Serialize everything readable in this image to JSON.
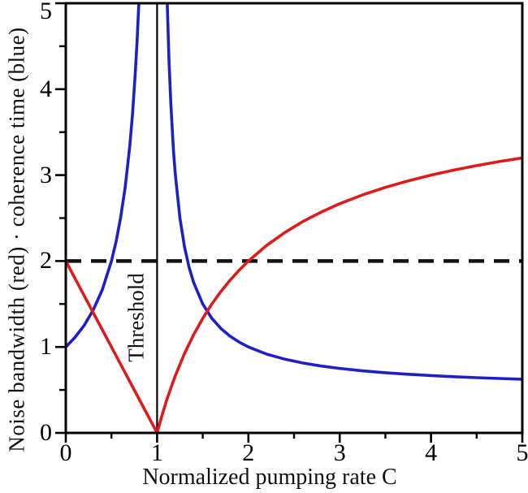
{
  "figure": {
    "background": "#ffffff",
    "axis_color": "#000000",
    "threshold_label": "Threshold"
  },
  "chart_data": {
    "type": "line",
    "title": "",
    "xlabel": "Normalized pumping rate C",
    "ylabel": "Noise bandwidth (red) · coherence time (blue)",
    "xlim": [
      0,
      5
    ],
    "ylim": [
      0,
      5
    ],
    "x_ticks": [
      0,
      1,
      2,
      3,
      4,
      5
    ],
    "y_ticks": [
      0,
      1,
      2,
      3,
      4,
      5
    ],
    "minor_tick_step": 0.5,
    "grid": false,
    "legend_position": "none (series identified by colors named in y-axis label)",
    "annotations": [
      {
        "type": "vline",
        "x": 1,
        "label": "Threshold",
        "style": "solid",
        "color": "#000000"
      },
      {
        "type": "hline",
        "y": 2,
        "label": "",
        "style": "dashed",
        "color": "#111111"
      }
    ],
    "series": [
      {
        "name": "coherence time",
        "color": "#1f1fc8",
        "segments": [
          [
            [
              0,
              1
            ],
            [
              0.1,
              1.111
            ],
            [
              0.2,
              1.25
            ],
            [
              0.3,
              1.429
            ],
            [
              0.4,
              1.667
            ],
            [
              0.5,
              2
            ],
            [
              0.55,
              2.222
            ],
            [
              0.6,
              2.5
            ],
            [
              0.65,
              2.857
            ],
            [
              0.7,
              3.333
            ],
            [
              0.73,
              3.704
            ],
            [
              0.76,
              4.167
            ],
            [
              0.78,
              4.545
            ],
            [
              0.8,
              5
            ]
          ],
          [
            [
              1.111,
              5
            ],
            [
              1.13,
              4.346
            ],
            [
              1.15,
              3.833
            ],
            [
              1.18,
              3.278
            ],
            [
              1.2,
              3
            ],
            [
              1.25,
              2.5
            ],
            [
              1.3,
              2.167
            ],
            [
              1.35,
              1.929
            ],
            [
              1.4,
              1.75
            ],
            [
              1.5,
              1.5
            ],
            [
              1.6,
              1.333
            ],
            [
              1.7,
              1.214
            ],
            [
              1.8,
              1.125
            ],
            [
              1.9,
              1.056
            ],
            [
              2,
              1
            ],
            [
              2.2,
              0.917
            ],
            [
              2.4,
              0.857
            ],
            [
              2.6,
              0.813
            ],
            [
              2.8,
              0.778
            ],
            [
              3,
              0.75
            ],
            [
              3.25,
              0.722
            ],
            [
              3.5,
              0.7
            ],
            [
              3.75,
              0.682
            ],
            [
              4,
              0.667
            ],
            [
              4.25,
              0.654
            ],
            [
              4.5,
              0.643
            ],
            [
              4.75,
              0.633
            ],
            [
              5,
              0.625
            ]
          ]
        ]
      },
      {
        "name": "noise bandwidth",
        "color": "#de1a1a",
        "segments": [
          [
            [
              0,
              2
            ],
            [
              0.25,
              1.5
            ],
            [
              0.5,
              1
            ],
            [
              0.75,
              0.5
            ],
            [
              1,
              0
            ]
          ],
          [
            [
              1,
              0
            ],
            [
              1.05,
              0.19
            ],
            [
              1.1,
              0.364
            ],
            [
              1.15,
              0.522
            ],
            [
              1.2,
              0.667
            ],
            [
              1.3,
              0.923
            ],
            [
              1.4,
              1.143
            ],
            [
              1.5,
              1.333
            ],
            [
              1.6,
              1.5
            ],
            [
              1.7,
              1.647
            ],
            [
              1.8,
              1.778
            ],
            [
              1.9,
              1.895
            ],
            [
              2,
              2
            ],
            [
              2.2,
              2.182
            ],
            [
              2.4,
              2.333
            ],
            [
              2.6,
              2.462
            ],
            [
              2.8,
              2.571
            ],
            [
              3,
              2.667
            ],
            [
              3.25,
              2.769
            ],
            [
              3.5,
              2.857
            ],
            [
              3.75,
              2.933
            ],
            [
              4,
              3
            ],
            [
              4.25,
              3.059
            ],
            [
              4.5,
              3.111
            ],
            [
              4.75,
              3.158
            ],
            [
              5,
              3.2
            ]
          ]
        ]
      }
    ]
  }
}
